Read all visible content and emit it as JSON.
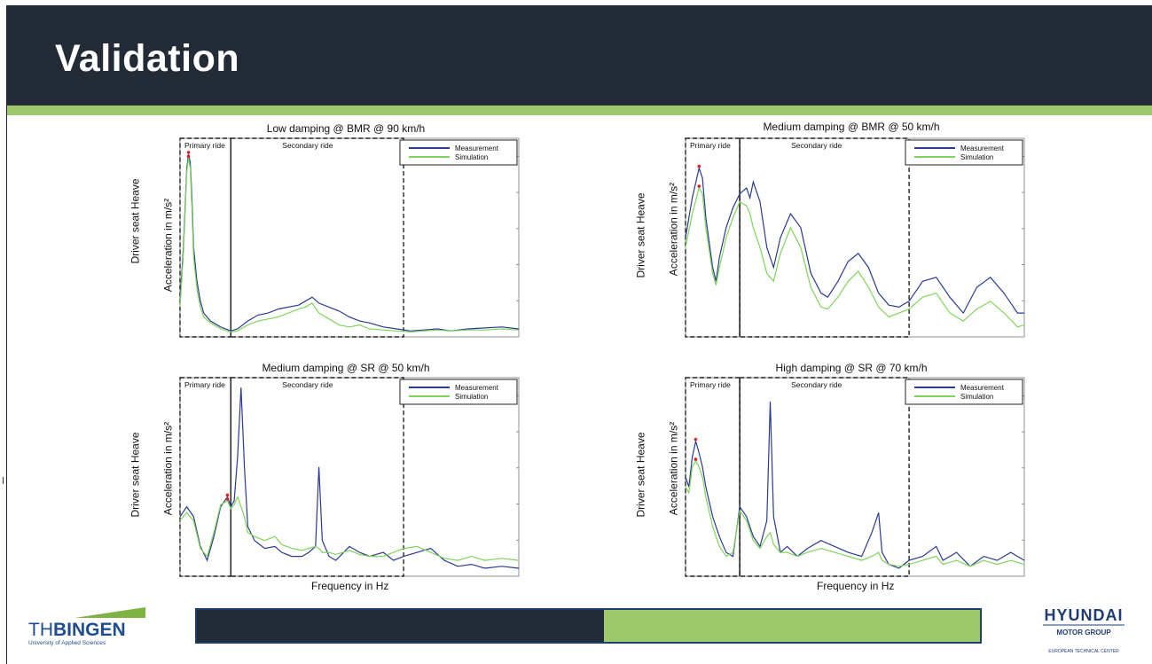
{
  "slide": {
    "title": "Validation",
    "progress_fraction": 0.52,
    "colors": {
      "header_bg": "#222b36",
      "accent_green": "#9dc96b",
      "progress_border": "#1d3f6e"
    }
  },
  "logos": {
    "left": {
      "name_th": "TH",
      "name_bingen": "BINGEN",
      "subtitle": "University of Applied Sciences"
    },
    "right": {
      "brand": "HYUNDAI",
      "group": "MOTOR GROUP",
      "center": "EUROPEAN TECHNICAL CENTER"
    }
  },
  "chart_data": [
    {
      "type": "line",
      "title": "Low damping @ BMR @ 90 km/h",
      "ylabel_outer": "Driver seat Heave",
      "ylabel_inner": "Acceleration in m/s²",
      "xlabel": "",
      "regions": [
        {
          "label": "Primary ride",
          "x": [
            0,
            0.15
          ]
        },
        {
          "label": "Secondary ride",
          "x": [
            0.15,
            0.66
          ]
        }
      ],
      "legend": {
        "position": "top-right",
        "entries": [
          "Measurement",
          "Simulation"
        ]
      },
      "colors": {
        "Measurement": "#2a3b93",
        "Simulation": "#7fd45a"
      },
      "ylim": [
        0,
        1
      ],
      "xlim": [
        0,
        1
      ],
      "series": [
        {
          "name": "Measurement",
          "x": [
            0,
            0.01,
            0.02,
            0.025,
            0.03,
            0.035,
            0.04,
            0.05,
            0.06,
            0.07,
            0.09,
            0.12,
            0.15,
            0.17,
            0.2,
            0.23,
            0.26,
            0.29,
            0.32,
            0.35,
            0.37,
            0.39,
            0.41,
            0.44,
            0.47,
            0.5,
            0.53,
            0.56,
            0.6,
            0.64,
            0.68,
            0.72,
            0.76,
            0.8,
            0.85,
            0.9,
            0.95,
            1.0
          ],
          "y": [
            0.18,
            0.45,
            0.85,
            0.92,
            0.88,
            0.7,
            0.45,
            0.28,
            0.18,
            0.12,
            0.08,
            0.05,
            0.03,
            0.04,
            0.08,
            0.11,
            0.12,
            0.14,
            0.15,
            0.16,
            0.18,
            0.2,
            0.17,
            0.15,
            0.13,
            0.1,
            0.08,
            0.07,
            0.05,
            0.04,
            0.03,
            0.035,
            0.04,
            0.03,
            0.04,
            0.045,
            0.05,
            0.04
          ]
        },
        {
          "name": "Simulation",
          "x": [
            0,
            0.01,
            0.02,
            0.025,
            0.03,
            0.035,
            0.04,
            0.05,
            0.06,
            0.07,
            0.09,
            0.12,
            0.15,
            0.17,
            0.2,
            0.23,
            0.26,
            0.29,
            0.32,
            0.35,
            0.37,
            0.39,
            0.41,
            0.44,
            0.47,
            0.5,
            0.53,
            0.56,
            0.6,
            0.64,
            0.68,
            0.72,
            0.76,
            0.8,
            0.85,
            0.9,
            0.95,
            1.0
          ],
          "y": [
            0.15,
            0.42,
            0.83,
            0.9,
            0.85,
            0.65,
            0.4,
            0.24,
            0.15,
            0.1,
            0.07,
            0.04,
            0.025,
            0.03,
            0.06,
            0.08,
            0.09,
            0.1,
            0.12,
            0.14,
            0.15,
            0.17,
            0.12,
            0.09,
            0.06,
            0.05,
            0.06,
            0.04,
            0.035,
            0.03,
            0.025,
            0.03,
            0.035,
            0.03,
            0.035,
            0.035,
            0.04,
            0.035
          ]
        }
      ]
    },
    {
      "type": "line",
      "title": "Medium damping @ BMR @ 50 km/h",
      "ylabel_outer": "Driver seat Heave",
      "ylabel_inner": "Acceleration in m/s²",
      "xlabel": "",
      "regions": [
        {
          "label": "Primary ride",
          "x": [
            0,
            0.16
          ]
        },
        {
          "label": "Secondary ride",
          "x": [
            0.16,
            0.66
          ]
        }
      ],
      "legend": {
        "position": "top-right",
        "entries": [
          "Measurement",
          "Simulation"
        ]
      },
      "colors": {
        "Measurement": "#2a3b93",
        "Simulation": "#7fd45a"
      },
      "ylim": [
        0,
        1
      ],
      "xlim": [
        0,
        1
      ],
      "series": [
        {
          "name": "Measurement",
          "x": [
            0,
            0.02,
            0.04,
            0.05,
            0.06,
            0.08,
            0.09,
            0.1,
            0.12,
            0.14,
            0.16,
            0.18,
            0.19,
            0.2,
            0.22,
            0.24,
            0.26,
            0.28,
            0.31,
            0.34,
            0.37,
            0.4,
            0.42,
            0.45,
            0.48,
            0.51,
            0.54,
            0.57,
            0.6,
            0.63,
            0.66,
            0.7,
            0.74,
            0.78,
            0.82,
            0.86,
            0.9,
            0.94,
            0.98,
            1.0
          ],
          "y": [
            0.5,
            0.7,
            0.85,
            0.8,
            0.6,
            0.35,
            0.28,
            0.4,
            0.55,
            0.65,
            0.72,
            0.75,
            0.7,
            0.78,
            0.68,
            0.45,
            0.35,
            0.5,
            0.62,
            0.55,
            0.32,
            0.22,
            0.2,
            0.28,
            0.38,
            0.42,
            0.35,
            0.22,
            0.16,
            0.15,
            0.18,
            0.28,
            0.3,
            0.2,
            0.12,
            0.25,
            0.3,
            0.22,
            0.12,
            0.12
          ]
        },
        {
          "name": "Simulation",
          "x": [
            0,
            0.02,
            0.04,
            0.05,
            0.06,
            0.08,
            0.09,
            0.1,
            0.12,
            0.14,
            0.16,
            0.18,
            0.19,
            0.2,
            0.22,
            0.24,
            0.26,
            0.28,
            0.31,
            0.34,
            0.37,
            0.4,
            0.42,
            0.45,
            0.48,
            0.51,
            0.54,
            0.57,
            0.6,
            0.63,
            0.66,
            0.7,
            0.74,
            0.78,
            0.82,
            0.86,
            0.9,
            0.94,
            0.98,
            1.0
          ],
          "y": [
            0.45,
            0.62,
            0.75,
            0.72,
            0.55,
            0.32,
            0.26,
            0.35,
            0.5,
            0.6,
            0.68,
            0.66,
            0.62,
            0.55,
            0.45,
            0.32,
            0.28,
            0.42,
            0.55,
            0.45,
            0.25,
            0.15,
            0.14,
            0.2,
            0.28,
            0.33,
            0.25,
            0.15,
            0.1,
            0.12,
            0.14,
            0.2,
            0.22,
            0.12,
            0.08,
            0.14,
            0.18,
            0.12,
            0.05,
            0.06
          ]
        }
      ]
    },
    {
      "type": "line",
      "title": "Medium damping @ SR @ 50 km/h",
      "ylabel_outer": "Driver seat Heave",
      "ylabel_inner": "Acceleration in m/s²",
      "xlabel": "Frequency in Hz",
      "regions": [
        {
          "label": "Primary ride",
          "x": [
            0,
            0.15
          ]
        },
        {
          "label": "Secondary ride",
          "x": [
            0.15,
            0.66
          ]
        }
      ],
      "legend": {
        "position": "top-right",
        "entries": [
          "Measurement",
          "Simulation"
        ]
      },
      "colors": {
        "Measurement": "#2a3b93",
        "Simulation": "#7fd45a"
      },
      "ylim": [
        0,
        1
      ],
      "xlim": [
        0,
        1
      ],
      "series": [
        {
          "name": "Measurement",
          "x": [
            0,
            0.02,
            0.04,
            0.06,
            0.08,
            0.1,
            0.12,
            0.14,
            0.15,
            0.16,
            0.17,
            0.18,
            0.19,
            0.2,
            0.22,
            0.25,
            0.28,
            0.3,
            0.33,
            0.36,
            0.38,
            0.4,
            0.41,
            0.42,
            0.44,
            0.46,
            0.5,
            0.53,
            0.56,
            0.6,
            0.63,
            0.66,
            0.7,
            0.74,
            0.78,
            0.82,
            0.86,
            0.9,
            0.95,
            1.0
          ],
          "y": [
            0.3,
            0.35,
            0.3,
            0.15,
            0.08,
            0.2,
            0.35,
            0.4,
            0.35,
            0.38,
            0.6,
            0.95,
            0.55,
            0.25,
            0.18,
            0.14,
            0.15,
            0.12,
            0.1,
            0.1,
            0.12,
            0.15,
            0.55,
            0.18,
            0.1,
            0.08,
            0.15,
            0.12,
            0.1,
            0.12,
            0.08,
            0.1,
            0.12,
            0.14,
            0.08,
            0.05,
            0.06,
            0.04,
            0.05,
            0.04
          ]
        },
        {
          "name": "Simulation",
          "x": [
            0,
            0.02,
            0.04,
            0.06,
            0.08,
            0.1,
            0.12,
            0.14,
            0.15,
            0.16,
            0.17,
            0.18,
            0.19,
            0.2,
            0.22,
            0.25,
            0.28,
            0.3,
            0.33,
            0.36,
            0.38,
            0.4,
            0.41,
            0.42,
            0.44,
            0.46,
            0.5,
            0.53,
            0.56,
            0.6,
            0.63,
            0.66,
            0.7,
            0.74,
            0.78,
            0.82,
            0.86,
            0.9,
            0.95,
            1.0
          ],
          "y": [
            0.28,
            0.32,
            0.28,
            0.14,
            0.1,
            0.22,
            0.36,
            0.38,
            0.34,
            0.36,
            0.4,
            0.35,
            0.3,
            0.22,
            0.2,
            0.18,
            0.2,
            0.16,
            0.14,
            0.13,
            0.14,
            0.15,
            0.14,
            0.12,
            0.12,
            0.11,
            0.13,
            0.11,
            0.1,
            0.1,
            0.12,
            0.14,
            0.15,
            0.12,
            0.09,
            0.08,
            0.1,
            0.08,
            0.09,
            0.08
          ]
        }
      ]
    },
    {
      "type": "line",
      "title": "High damping @ SR @ 70 km/h",
      "ylabel_outer": "Driver seat Heave",
      "ylabel_inner": "Acceleration in m/s²",
      "xlabel": "Frequency in Hz",
      "regions": [
        {
          "label": "Primary ride",
          "x": [
            0,
            0.16
          ]
        },
        {
          "label": "Secondary ride",
          "x": [
            0.16,
            0.66
          ]
        }
      ],
      "legend": {
        "position": "top-right",
        "entries": [
          "Measurement",
          "Simulation"
        ]
      },
      "colors": {
        "Measurement": "#2a3b93",
        "Simulation": "#7fd45a"
      },
      "ylim": [
        0,
        1
      ],
      "xlim": [
        0,
        1
      ],
      "series": [
        {
          "name": "Measurement",
          "x": [
            0,
            0.01,
            0.02,
            0.03,
            0.04,
            0.05,
            0.06,
            0.08,
            0.1,
            0.12,
            0.14,
            0.16,
            0.18,
            0.2,
            0.22,
            0.24,
            0.25,
            0.26,
            0.28,
            0.3,
            0.33,
            0.36,
            0.4,
            0.44,
            0.48,
            0.52,
            0.55,
            0.57,
            0.58,
            0.6,
            0.63,
            0.66,
            0.7,
            0.74,
            0.76,
            0.8,
            0.84,
            0.88,
            0.92,
            0.96,
            1.0
          ],
          "y": [
            0.5,
            0.45,
            0.6,
            0.68,
            0.62,
            0.55,
            0.45,
            0.3,
            0.2,
            0.12,
            0.1,
            0.35,
            0.3,
            0.2,
            0.15,
            0.28,
            0.88,
            0.3,
            0.12,
            0.15,
            0.1,
            0.14,
            0.18,
            0.15,
            0.12,
            0.1,
            0.22,
            0.32,
            0.12,
            0.06,
            0.04,
            0.08,
            0.1,
            0.15,
            0.08,
            0.12,
            0.05,
            0.1,
            0.08,
            0.12,
            0.08
          ]
        },
        {
          "name": "Simulation",
          "x": [
            0,
            0.01,
            0.02,
            0.03,
            0.04,
            0.05,
            0.06,
            0.08,
            0.1,
            0.12,
            0.14,
            0.16,
            0.18,
            0.2,
            0.22,
            0.24,
            0.25,
            0.26,
            0.28,
            0.3,
            0.33,
            0.36,
            0.4,
            0.44,
            0.48,
            0.52,
            0.55,
            0.57,
            0.58,
            0.6,
            0.63,
            0.66,
            0.7,
            0.74,
            0.76,
            0.8,
            0.84,
            0.88,
            0.92,
            0.96,
            1.0
          ],
          "y": [
            0.45,
            0.42,
            0.55,
            0.58,
            0.55,
            0.5,
            0.4,
            0.25,
            0.15,
            0.1,
            0.12,
            0.33,
            0.28,
            0.18,
            0.14,
            0.2,
            0.22,
            0.16,
            0.12,
            0.12,
            0.1,
            0.12,
            0.14,
            0.12,
            0.1,
            0.08,
            0.1,
            0.12,
            0.08,
            0.06,
            0.05,
            0.06,
            0.08,
            0.1,
            0.06,
            0.08,
            0.05,
            0.08,
            0.06,
            0.08,
            0.06
          ]
        }
      ]
    }
  ]
}
